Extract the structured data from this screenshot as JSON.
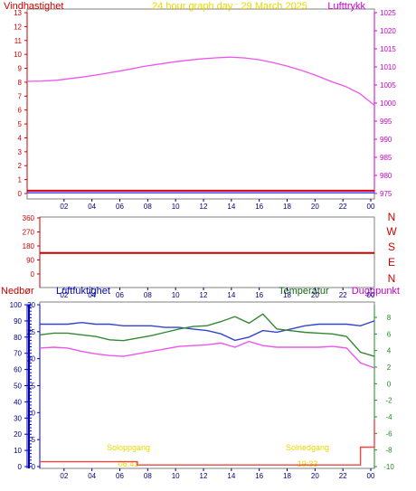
{
  "header": {
    "wind_label": "Vindhastighet",
    "title": "24 hour graph day : 29 March 2025",
    "pressure_label": "Lufttrykk"
  },
  "colors": {
    "bg": "#ffffff",
    "panel_bg": "#ffffff",
    "frame": "#808080",
    "axis_wind": "#cc0000",
    "axis_pressure": "#cc00cc",
    "title": "#e8d800",
    "pressure_line": "#ee55ee",
    "wind_line": "#dd0000",
    "wind_gust_line": "#3333ff",
    "direction_line": "#cc0000",
    "humidity": "#3344cc",
    "temperature": "#338833",
    "dewpoint": "#ee55ee",
    "rain": "#ee4444",
    "rain_axis": "#0000cc",
    "temp_axis": "#228822",
    "sun": "#e8d800",
    "x_tick_text": "#000080"
  },
  "x_axis": {
    "ticks": [
      "02",
      "04",
      "06",
      "08",
      "10",
      "12",
      "14",
      "16",
      "18",
      "20",
      "22",
      "00"
    ]
  },
  "sun": {
    "sunrise_label": "Soloppgang",
    "sunset_label": "Solnedgang",
    "sunrise_time": "06:41",
    "sunset_time": "19:33"
  },
  "chart_data": [
    {
      "type": "line",
      "title": "24 hour graph day : 29 March 2025",
      "x_label": "",
      "y_left_label": "Vindhastighet",
      "y_right_label": "Lufttrykk",
      "y_left_lim": [
        0,
        13
      ],
      "y_left_ticks": [
        "0",
        "1",
        "2",
        "3",
        "4",
        "5",
        "6",
        "7",
        "8",
        "9",
        "10",
        "11",
        "12",
        "13"
      ],
      "y_right_lim": [
        975,
        1025
      ],
      "y_right_ticks": [
        "975",
        "980",
        "985",
        "990",
        "995",
        "1000",
        "1005",
        "1010",
        "1015",
        "1020",
        "1025"
      ],
      "x_hours": [
        0,
        1,
        2,
        3,
        4,
        5,
        6,
        7,
        8,
        9,
        10,
        11,
        12,
        13,
        14,
        15,
        16,
        17,
        18,
        19,
        20,
        21,
        22,
        23,
        24
      ],
      "series": [
        {
          "axis": "right",
          "values": [
            1006.0,
            1006.1,
            1006.3,
            1006.8,
            1007.3,
            1007.9,
            1008.6,
            1009.3,
            1010.1,
            1010.7,
            1011.3,
            1011.8,
            1012.2,
            1012.5,
            1012.7,
            1012.5,
            1012.0,
            1011.2,
            1010.2,
            1009.0,
            1007.6,
            1006.0,
            1004.6,
            1002.6,
            999.4
          ]
        },
        {
          "axis": "left",
          "values": [
            0.2,
            0.2,
            0.2,
            0.2,
            0.2,
            0.2,
            0.2,
            0.2,
            0.2,
            0.2,
            0.2,
            0.2,
            0.2,
            0.2,
            0.2,
            0.2,
            0.2,
            0.2,
            0.2,
            0.2,
            0.2,
            0.2,
            0.2,
            0.2,
            0.2
          ]
        },
        {
          "axis": "left",
          "values": [
            0.05,
            0.05,
            0.05,
            0.05,
            0.05,
            0.05,
            0.05,
            0.05,
            0.05,
            0.05,
            0.05,
            0.05,
            0.05,
            0.05,
            0.05,
            0.05,
            0.05,
            0.05,
            0.05,
            0.05,
            0.05,
            0.05,
            0.05,
            0.05,
            0.05
          ]
        }
      ]
    },
    {
      "type": "line",
      "y_left_lim": [
        0,
        360
      ],
      "y_left_ticks": [
        "0",
        "90",
        "180",
        "270",
        "360"
      ],
      "y_right_ticks": [
        "N",
        "E",
        "S",
        "W",
        "N"
      ],
      "x_hours": [
        0,
        24
      ],
      "series": [
        {
          "values": [
            135,
            135
          ]
        }
      ]
    },
    {
      "type": "line",
      "y_axis_labels": {
        "rain": "Nedbør",
        "humidity": "Luftfuktighet",
        "temperature": "Temperatur",
        "dewpoint": "Duggpunkt"
      },
      "rain_lim": [
        0,
        30
      ],
      "rain_ticks": [
        "0",
        "5",
        "10",
        "15",
        "20",
        "25",
        "30"
      ],
      "humidity_lim": [
        0,
        100
      ],
      "humidity_ticks": [
        "0",
        "10",
        "20",
        "30",
        "40",
        "50",
        "60",
        "70",
        "80",
        "90",
        "100"
      ],
      "temp_lim": [
        -10,
        10
      ],
      "temp_ticks": [
        "-10",
        "-8",
        "-6",
        "-4",
        "-2",
        "0",
        "2",
        "4",
        "6",
        "8"
      ],
      "x_hours": [
        0,
        1,
        2,
        3,
        4,
        5,
        6,
        7,
        8,
        9,
        10,
        11,
        12,
        13,
        14,
        15,
        16,
        17,
        18,
        19,
        20,
        21,
        22,
        23,
        24
      ],
      "series": [
        {
          "key": "humidity",
          "axis": "humidity",
          "values": [
            88,
            88,
            88,
            89,
            88,
            88,
            87,
            87,
            87,
            86,
            86,
            85,
            84,
            82,
            78,
            80,
            84,
            83,
            85,
            87,
            88,
            88,
            88,
            87,
            90
          ]
        },
        {
          "key": "temperature",
          "axis": "temp",
          "values": [
            5.9,
            6.1,
            6.1,
            5.9,
            5.7,
            5.3,
            5.2,
            5.5,
            5.8,
            6.2,
            6.6,
            6.9,
            7.0,
            7.5,
            8.1,
            7.3,
            8.4,
            6.6,
            6.4,
            6.2,
            6.1,
            6.0,
            5.7,
            3.8,
            3.3
          ]
        },
        {
          "key": "dewpoint",
          "axis": "temp",
          "values": [
            4.3,
            4.4,
            4.3,
            3.9,
            3.6,
            3.4,
            3.3,
            3.6,
            3.9,
            4.2,
            4.5,
            4.6,
            4.7,
            4.9,
            4.4,
            5.1,
            4.6,
            4.4,
            4.4,
            4.4,
            4.4,
            4.5,
            4.3,
            2.5,
            1.9
          ]
        },
        {
          "key": "rain",
          "axis": "rain",
          "values": [
            0.9,
            0.9,
            0.9,
            0.9,
            0.9,
            0.9,
            0.9,
            0.3,
            0.3,
            0.3,
            0.3,
            0.3,
            0.3,
            0.3,
            0.3,
            0.3,
            0.3,
            0.3,
            0.3,
            0.3,
            0.3,
            0.3,
            0.3,
            3.6,
            8.7
          ]
        }
      ]
    }
  ]
}
